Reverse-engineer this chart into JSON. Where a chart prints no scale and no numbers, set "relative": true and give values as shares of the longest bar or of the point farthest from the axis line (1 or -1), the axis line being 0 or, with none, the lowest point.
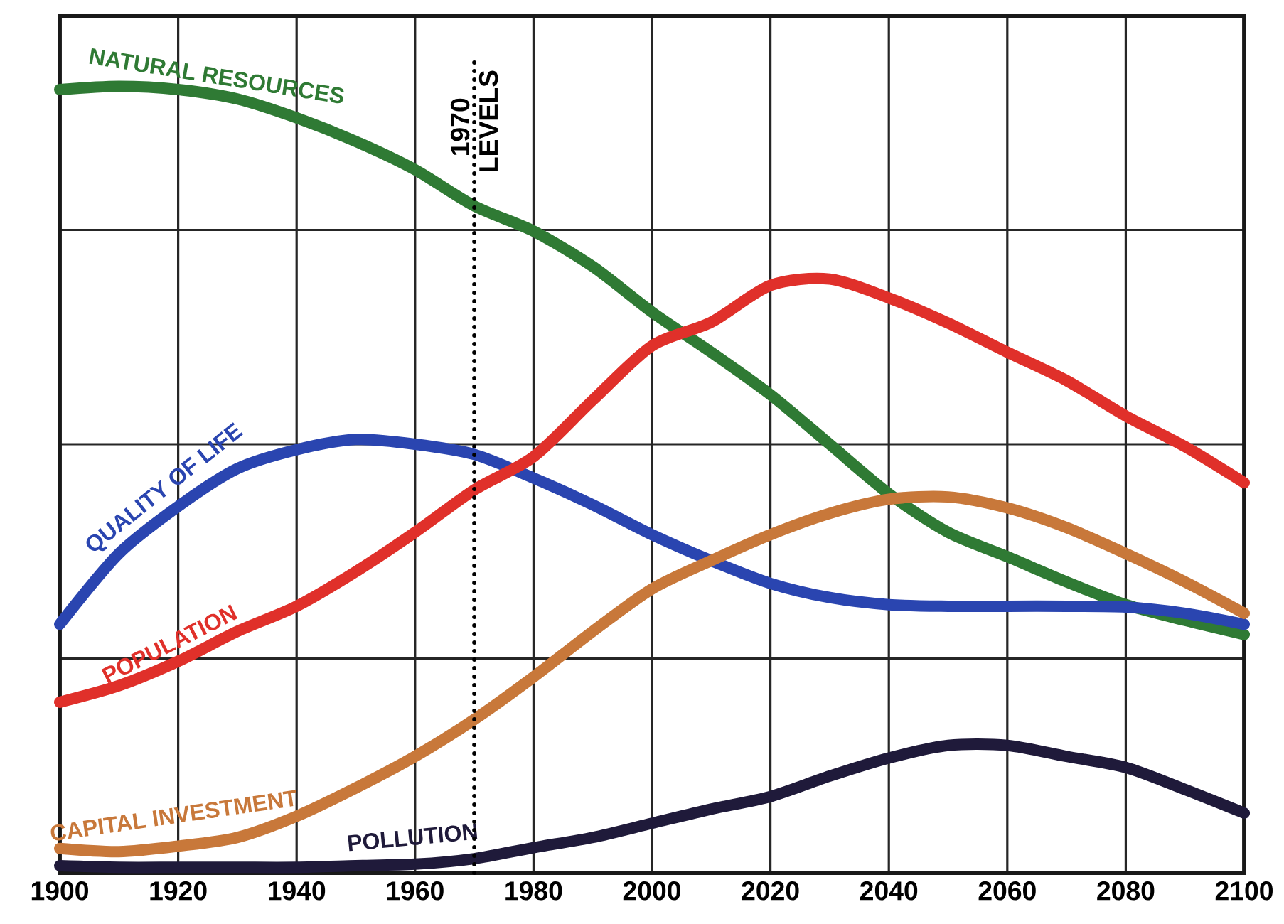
{
  "chart_data": {
    "type": "line",
    "relative": true,
    "x": [
      1900,
      1910,
      1920,
      1930,
      1940,
      1950,
      1960,
      1970,
      1980,
      1990,
      2000,
      2010,
      2020,
      2030,
      2040,
      2050,
      2060,
      2070,
      2080,
      2090,
      2100
    ],
    "xlim": [
      1900,
      2100
    ],
    "xticks": [
      1900,
      1920,
      1940,
      1960,
      1980,
      2000,
      2020,
      2040,
      2060,
      2080,
      2100
    ],
    "grid": true,
    "marker": "none",
    "line_style": "solid",
    "series": [
      {
        "name": "NATURAL RESOURCES",
        "color": "#2f7a34",
        "values": [
          0.996,
          1.0,
          0.996,
          0.984,
          0.96,
          0.93,
          0.894,
          0.848,
          0.816,
          0.771,
          0.713,
          0.662,
          0.608,
          0.545,
          0.482,
          0.433,
          0.402,
          0.37,
          0.341,
          0.321,
          0.303
        ]
      },
      {
        "name": "QUALITY OF LIFE",
        "color": "#2a45b0",
        "values": [
          0.316,
          0.406,
          0.466,
          0.514,
          0.538,
          0.551,
          0.545,
          0.532,
          0.502,
          0.468,
          0.43,
          0.397,
          0.368,
          0.35,
          0.341,
          0.339,
          0.339,
          0.339,
          0.338,
          0.33,
          0.316
        ]
      },
      {
        "name": "POPULATION",
        "color": "#e0302a",
        "values": [
          0.217,
          0.238,
          0.269,
          0.307,
          0.339,
          0.383,
          0.433,
          0.487,
          0.529,
          0.601,
          0.67,
          0.7,
          0.747,
          0.755,
          0.731,
          0.699,
          0.662,
          0.626,
          0.581,
          0.542,
          0.496
        ]
      },
      {
        "name": "CAPITAL INVESTMENT",
        "color": "#c8783a",
        "values": [
          0.031,
          0.027,
          0.034,
          0.045,
          0.072,
          0.108,
          0.148,
          0.195,
          0.249,
          0.307,
          0.361,
          0.397,
          0.43,
          0.457,
          0.475,
          0.478,
          0.464,
          0.439,
          0.406,
          0.37,
          0.33
        ]
      },
      {
        "name": "POLLUTION",
        "color": "#1f1a3a",
        "values": [
          0.009,
          0.007,
          0.007,
          0.007,
          0.007,
          0.009,
          0.011,
          0.018,
          0.032,
          0.045,
          0.063,
          0.081,
          0.097,
          0.123,
          0.146,
          0.162,
          0.162,
          0.148,
          0.134,
          0.106,
          0.076
        ]
      }
    ],
    "ref_lines": [
      {
        "axis": "x",
        "value": 1970,
        "label": "1970 LEVELS",
        "line_style": "dotted"
      }
    ]
  }
}
